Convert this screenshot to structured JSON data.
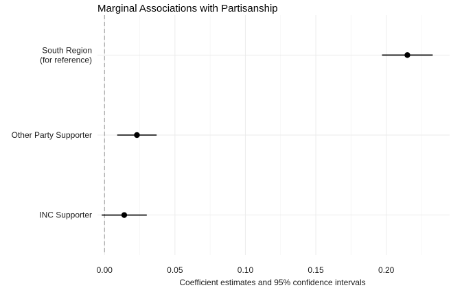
{
  "chart_data": {
    "type": "scatter",
    "title": "Marginal Associations with Partisanship",
    "xlabel": "Coefficient estimates and 95% confidence intervals",
    "ylabel": "",
    "xlim": [
      -0.005,
      0.245
    ],
    "x_ticks": [
      0.0,
      0.05,
      0.1,
      0.15,
      0.2
    ],
    "x_tick_labels": [
      "0.00",
      "0.05",
      "0.10",
      "0.15",
      "0.20"
    ],
    "reference_line": 0,
    "grid": true,
    "legend": "none",
    "categories": [
      {
        "label_lines": [
          "South Region",
          "(for reference)"
        ],
        "estimate": 0.215,
        "ci": [
          0.197,
          0.233
        ]
      },
      {
        "label_lines": [
          "Other Party Supporter"
        ],
        "estimate": 0.023,
        "ci": [
          0.009,
          0.037
        ]
      },
      {
        "label_lines": [
          "INC Supporter"
        ],
        "estimate": 0.014,
        "ci": [
          -0.002,
          0.03
        ]
      }
    ]
  }
}
